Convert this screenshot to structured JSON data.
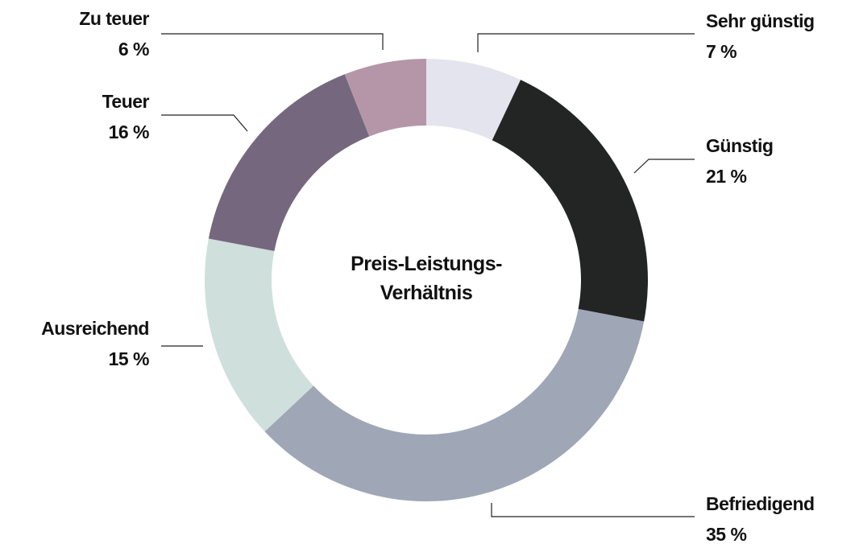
{
  "chart_data": {
    "type": "donut",
    "title": "Preis-Leistungs-Verhältnis",
    "categories": [
      "Sehr günstig",
      "Günstig",
      "Befriedigend",
      "Ausreichend",
      "Teuer",
      "Zu teuer"
    ],
    "values": [
      7,
      21,
      35,
      15,
      16,
      6
    ],
    "value_labels": [
      "7 %",
      "21 %",
      "35 %",
      "15 %",
      "16 %",
      "6 %"
    ],
    "colors": [
      "#e4e4ee",
      "#232524",
      "#9fa6b5",
      "#cfdfdc",
      "#75687e",
      "#b596a8"
    ]
  }
}
